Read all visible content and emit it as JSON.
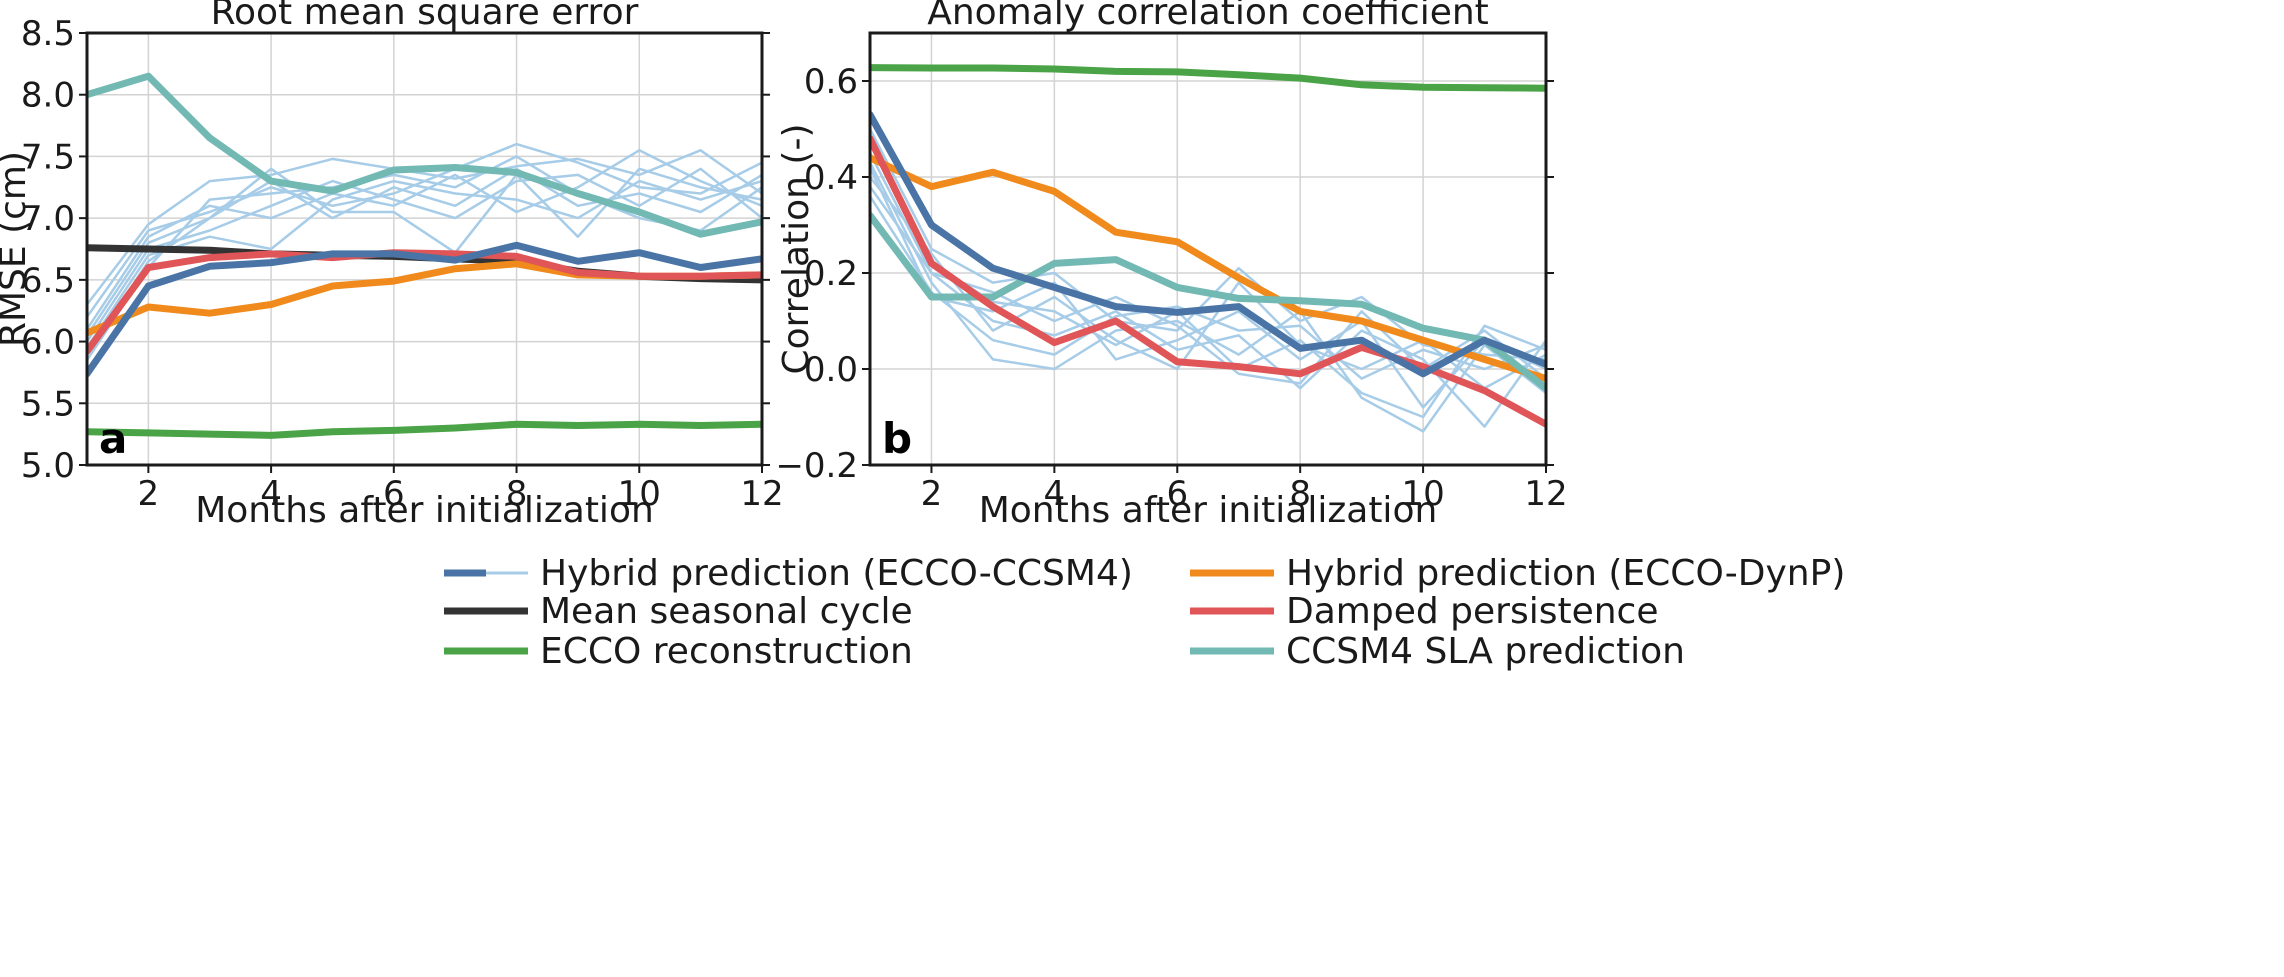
{
  "chart_data": [
    {
      "type": "line",
      "panel_letter": "a",
      "title": "Root mean square error",
      "xlabel": "Months after initialization",
      "ylabel": "RMSE (cm)",
      "xlim": [
        1,
        12
      ],
      "ylim": [
        5.0,
        8.5
      ],
      "xticks": [
        2,
        4,
        6,
        8,
        10,
        12
      ],
      "xtick_labels": [
        "2",
        "4",
        "6",
        "8",
        "10",
        "12"
      ],
      "yticks": [
        5.0,
        5.5,
        6.0,
        6.5,
        7.0,
        7.5,
        8.0,
        8.5
      ],
      "ytick_labels": [
        "5.0",
        "5.5",
        "6.0",
        "6.5",
        "7.0",
        "7.5",
        "8.0",
        "8.5"
      ],
      "grid": true,
      "x": [
        1,
        2,
        3,
        4,
        5,
        6,
        7,
        8,
        9,
        10,
        11,
        12
      ],
      "ensemble": {
        "color": "#a6cce8",
        "members": [
          [
            6.3,
            6.95,
            7.3,
            7.35,
            7.48,
            7.4,
            7.32,
            7.42,
            7.48,
            7.35,
            7.55,
            7.2
          ],
          [
            6.2,
            6.9,
            7.05,
            7.25,
            7.1,
            7.2,
            7.4,
            7.6,
            7.45,
            7.25,
            7.2,
            7.45
          ],
          [
            6.1,
            6.85,
            7.1,
            7.0,
            7.2,
            7.1,
            7.35,
            7.05,
            7.25,
            7.55,
            7.3,
            7.1
          ],
          [
            6.05,
            6.8,
            7.0,
            7.3,
            7.0,
            7.25,
            7.1,
            7.4,
            7.1,
            7.2,
            7.05,
            7.35
          ],
          [
            6.0,
            6.75,
            6.9,
            7.1,
            7.3,
            7.15,
            7.0,
            7.3,
            7.35,
            7.1,
            7.4,
            7.0
          ],
          [
            5.95,
            6.7,
            6.85,
            6.75,
            7.15,
            7.3,
            7.2,
            7.15,
            7.0,
            7.3,
            7.15,
            7.3
          ],
          [
            5.9,
            6.65,
            7.0,
            7.4,
            7.05,
            7.05,
            6.72,
            7.35,
            6.85,
            7.4,
            7.25,
            7.15
          ],
          [
            5.85,
            6.6,
            7.15,
            7.2,
            7.25,
            7.35,
            7.25,
            7.5,
            7.2,
            7.0,
            6.9,
            7.25
          ]
        ]
      },
      "series": [
        {
          "name": "Mean seasonal cycle",
          "color": "#333333",
          "values": [
            6.76,
            6.75,
            6.74,
            6.71,
            6.7,
            6.69,
            6.67,
            6.65,
            6.57,
            6.53,
            6.51,
            6.5
          ]
        },
        {
          "name": "ECCO reconstruction",
          "color": "#4aa346",
          "values": [
            5.27,
            5.26,
            5.25,
            5.24,
            5.27,
            5.28,
            5.3,
            5.33,
            5.32,
            5.33,
            5.32,
            5.33
          ]
        },
        {
          "name": "CCSM4 SLA prediction",
          "color": "#72b8b3",
          "values": [
            8.0,
            8.15,
            7.65,
            7.3,
            7.22,
            7.39,
            7.41,
            7.37,
            7.2,
            7.05,
            6.87,
            6.97
          ]
        },
        {
          "name": "Hybrid prediction (ECCO-DynP)",
          "color": "#f08a1c",
          "values": [
            6.07,
            6.28,
            6.23,
            6.3,
            6.45,
            6.49,
            6.59,
            6.63,
            6.54,
            6.53,
            6.53,
            6.54
          ]
        },
        {
          "name": "Damped persistence",
          "color": "#e05557",
          "values": [
            5.92,
            6.6,
            6.68,
            6.71,
            6.68,
            6.72,
            6.71,
            6.69,
            6.56,
            6.53,
            6.53,
            6.54
          ]
        },
        {
          "name": "Hybrid prediction (ECCO-CCSM4)",
          "color": "#4a74a5",
          "values": [
            5.74,
            6.45,
            6.61,
            6.64,
            6.71,
            6.71,
            6.66,
            6.78,
            6.65,
            6.72,
            6.6,
            6.67
          ]
        }
      ]
    },
    {
      "type": "line",
      "panel_letter": "b",
      "title": "Anomaly correlation coefficient",
      "xlabel": "Months after initialization",
      "ylabel": "Correlation (-)",
      "xlim": [
        1,
        12
      ],
      "ylim": [
        -0.2,
        0.7
      ],
      "xticks": [
        2,
        4,
        6,
        8,
        10,
        12
      ],
      "xtick_labels": [
        "2",
        "4",
        "6",
        "8",
        "10",
        "12"
      ],
      "yticks": [
        -0.2,
        0.0,
        0.2,
        0.4,
        0.6
      ],
      "ytick_labels": [
        "−0.2",
        "0.0",
        "0.2",
        "0.4",
        "0.6"
      ],
      "grid": true,
      "x": [
        1,
        2,
        3,
        4,
        5,
        6,
        7,
        8,
        9,
        10,
        11,
        12
      ],
      "ensemble": {
        "color": "#a6cce8",
        "members": [
          [
            0.5,
            0.25,
            0.18,
            0.2,
            0.1,
            0.08,
            0.21,
            0.1,
            0.15,
            0.05,
            0.03,
            0.02
          ],
          [
            0.47,
            0.22,
            0.14,
            0.12,
            0.05,
            0.12,
            0.0,
            0.06,
            -0.05,
            -0.1,
            0.09,
            0.04
          ],
          [
            0.45,
            0.2,
            0.1,
            0.07,
            0.12,
            0.04,
            0.07,
            -0.04,
            0.08,
            0.02,
            -0.12,
            0.06
          ],
          [
            0.43,
            0.18,
            0.02,
            0.0,
            0.08,
            0.1,
            0.03,
            0.12,
            -0.06,
            -0.13,
            0.05,
            -0.05
          ],
          [
            0.42,
            0.15,
            0.12,
            0.18,
            0.02,
            0.06,
            0.12,
            0.02,
            0.1,
            -0.08,
            0.06,
            0.0
          ],
          [
            0.4,
            0.24,
            0.08,
            0.15,
            0.06,
            0.0,
            0.18,
            0.05,
            0.0,
            0.06,
            -0.04,
            0.03
          ],
          [
            0.38,
            0.2,
            0.16,
            0.1,
            0.15,
            0.09,
            -0.01,
            -0.03,
            0.12,
            0.0,
            0.08,
            -0.02
          ],
          [
            0.36,
            0.16,
            0.06,
            0.03,
            0.11,
            0.13,
            0.08,
            0.09,
            -0.02,
            0.04,
            0.0,
            0.05
          ]
        ]
      },
      "series": [
        {
          "name": "ECCO reconstruction",
          "color": "#4aa346",
          "values": [
            0.628,
            0.627,
            0.627,
            0.625,
            0.62,
            0.619,
            0.613,
            0.606,
            0.592,
            0.587,
            0.586,
            0.585
          ]
        },
        {
          "name": "Hybrid prediction (ECCO-DynP)",
          "color": "#f08a1c",
          "values": [
            0.44,
            0.38,
            0.41,
            0.37,
            0.285,
            0.265,
            0.19,
            0.12,
            0.1,
            0.06,
            0.02,
            -0.02
          ]
        },
        {
          "name": "CCSM4 SLA prediction",
          "color": "#72b8b3",
          "values": [
            0.32,
            0.15,
            0.15,
            0.22,
            0.228,
            0.17,
            0.147,
            0.142,
            0.135,
            0.085,
            0.06,
            -0.04
          ]
        },
        {
          "name": "Damped persistence",
          "color": "#e05557",
          "values": [
            0.48,
            0.22,
            0.13,
            0.055,
            0.1,
            0.015,
            0.005,
            -0.01,
            0.045,
            0.005,
            -0.045,
            -0.115
          ]
        },
        {
          "name": "Hybrid prediction (ECCO-CCSM4)",
          "color": "#4a74a5",
          "values": [
            0.53,
            0.3,
            0.21,
            0.17,
            0.13,
            0.118,
            0.13,
            0.043,
            0.06,
            -0.01,
            0.06,
            0.01
          ]
        }
      ]
    }
  ],
  "legend": {
    "placement": "bottom-center",
    "items": [
      {
        "label": "Hybrid prediction (ECCO-CCSM4)",
        "color": "#4a74a5",
        "secondary_color": "#a6cce8"
      },
      {
        "label": "Hybrid prediction (ECCO-DynP)",
        "color": "#f08a1c"
      },
      {
        "label": "Mean seasonal cycle",
        "color": "#333333"
      },
      {
        "label": "Damped persistence",
        "color": "#e05557"
      },
      {
        "label": "ECCO reconstruction",
        "color": "#4aa346"
      },
      {
        "label": "CCSM4 SLA prediction",
        "color": "#72b8b3"
      }
    ]
  }
}
